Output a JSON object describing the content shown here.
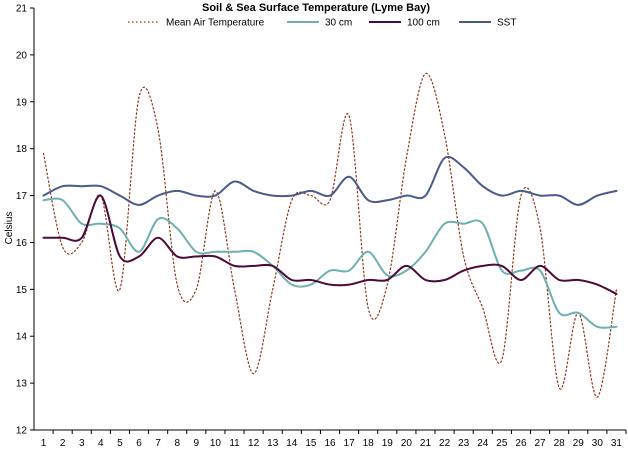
{
  "chart_data": {
    "type": "line",
    "title": "Soil & Sea Surface Temperature (Lyme Bay)",
    "ylabel": "Celsius",
    "xlabel": "",
    "ylim": [
      12,
      21
    ],
    "yticks": [
      12,
      13,
      14,
      15,
      16,
      17,
      18,
      19,
      20,
      21
    ],
    "x": [
      1,
      2,
      3,
      4,
      5,
      6,
      7,
      8,
      9,
      10,
      11,
      12,
      13,
      14,
      15,
      16,
      17,
      18,
      19,
      20,
      21,
      22,
      23,
      24,
      25,
      26,
      27,
      28,
      29,
      30,
      31
    ],
    "legend_position": "top",
    "series": [
      {
        "name": "Mean Air Temperature",
        "color": "#8b3a1a",
        "style": "dotted",
        "values": [
          17.9,
          15.9,
          16.0,
          17.0,
          15.0,
          19.1,
          18.4,
          15.1,
          15.0,
          17.1,
          15.0,
          13.2,
          15.0,
          16.9,
          17.0,
          16.9,
          18.7,
          14.6,
          15.1,
          17.8,
          19.6,
          18.3,
          15.7,
          14.6,
          13.5,
          17.0,
          16.3,
          12.9,
          14.5,
          12.7,
          15.0
        ]
      },
      {
        "name": "30 cm",
        "color": "#6fafaf",
        "style": "solid",
        "values": [
          16.9,
          16.9,
          16.4,
          16.4,
          16.3,
          15.8,
          16.5,
          16.3,
          15.8,
          15.8,
          15.8,
          15.8,
          15.5,
          15.1,
          15.1,
          15.4,
          15.4,
          15.8,
          15.3,
          15.4,
          15.8,
          16.4,
          16.4,
          16.4,
          15.4,
          15.4,
          15.4,
          14.5,
          14.5,
          14.2,
          14.2
        ]
      },
      {
        "name": "100 cm",
        "color": "#4a0a3a",
        "style": "solid",
        "values": [
          16.1,
          16.1,
          16.1,
          17.0,
          15.7,
          15.7,
          16.1,
          15.7,
          15.7,
          15.7,
          15.5,
          15.5,
          15.5,
          15.2,
          15.2,
          15.1,
          15.1,
          15.2,
          15.2,
          15.5,
          15.2,
          15.2,
          15.4,
          15.5,
          15.5,
          15.2,
          15.5,
          15.2,
          15.2,
          15.1,
          14.9
        ]
      },
      {
        "name": "SST",
        "color": "#4a5a8a",
        "style": "solid",
        "values": [
          17.0,
          17.2,
          17.2,
          17.2,
          17.0,
          16.8,
          17.0,
          17.1,
          17.0,
          17.0,
          17.3,
          17.1,
          17.0,
          17.0,
          17.1,
          17.0,
          17.4,
          16.9,
          16.9,
          17.0,
          17.0,
          17.8,
          17.6,
          17.2,
          17.0,
          17.1,
          17.0,
          17.0,
          16.8,
          17.0,
          17.1
        ]
      }
    ]
  }
}
